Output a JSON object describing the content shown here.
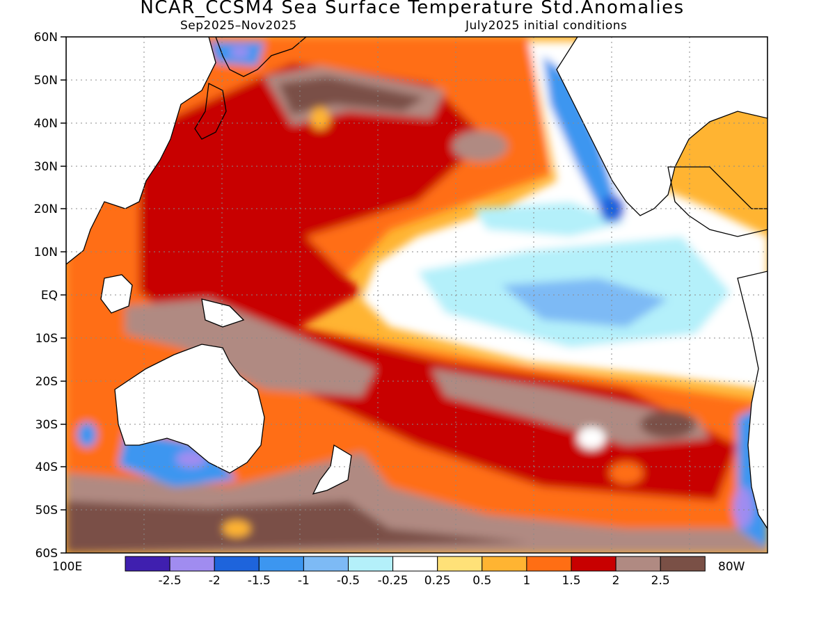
{
  "header": {
    "title": "NCAR_CCSM4 Sea Surface Temperature Std.Anomalies",
    "period": "Sep2025–Nov2025",
    "conditions": "July2025 initial conditions"
  },
  "axes": {
    "lat_labels": [
      "60N",
      "50N",
      "40N",
      "30N",
      "20N",
      "10N",
      "EQ",
      "10S",
      "20S",
      "30S",
      "40S",
      "50S",
      "60S"
    ],
    "lon_left_label": "100E",
    "lon_right_label": "80W",
    "lat_range": [
      -60,
      60
    ],
    "lon_range": [
      "100E",
      "80W"
    ],
    "grid": "dotted"
  },
  "colorbar": {
    "bins": [
      {
        "color": "#3f1faf"
      },
      {
        "color": "#a08cf0"
      },
      {
        "color": "#1e64dc"
      },
      {
        "color": "#3c96f0"
      },
      {
        "color": "#7dbaf5"
      },
      {
        "color": "#b4f0fa"
      },
      {
        "color": "#ffffff"
      },
      {
        "color": "#ffe178"
      },
      {
        "color": "#ffb432"
      },
      {
        "color": "#ff6e14"
      },
      {
        "color": "#c80000"
      },
      {
        "color": "#b08a82"
      },
      {
        "color": "#7a5046"
      }
    ],
    "tick_labels": [
      "-2.5",
      "-2",
      "-1.5",
      "-1",
      "-0.5",
      "-0.25",
      "0.25",
      "0.5",
      "1",
      "1.5",
      "2",
      "2.5"
    ]
  },
  "map_features": [
    {
      "feature": "blob-darkbrown-north-pacific",
      "color": "#7a5046"
    },
    {
      "feature": "blob-darkred-west-pacific",
      "color": "#c80000"
    },
    {
      "feature": "blob-orange-west-pacific",
      "color": "#ff6e14"
    },
    {
      "feature": "blob-lightblue-east-pacific",
      "color": "#b4f0fa"
    },
    {
      "feature": "blob-blue-california",
      "color": "#3c96f0"
    },
    {
      "feature": "blob-darkbrown-south-pacific",
      "color": "#7a5046"
    },
    {
      "feature": "blob-purple-south-australia",
      "color": "#a08cf0"
    }
  ]
}
